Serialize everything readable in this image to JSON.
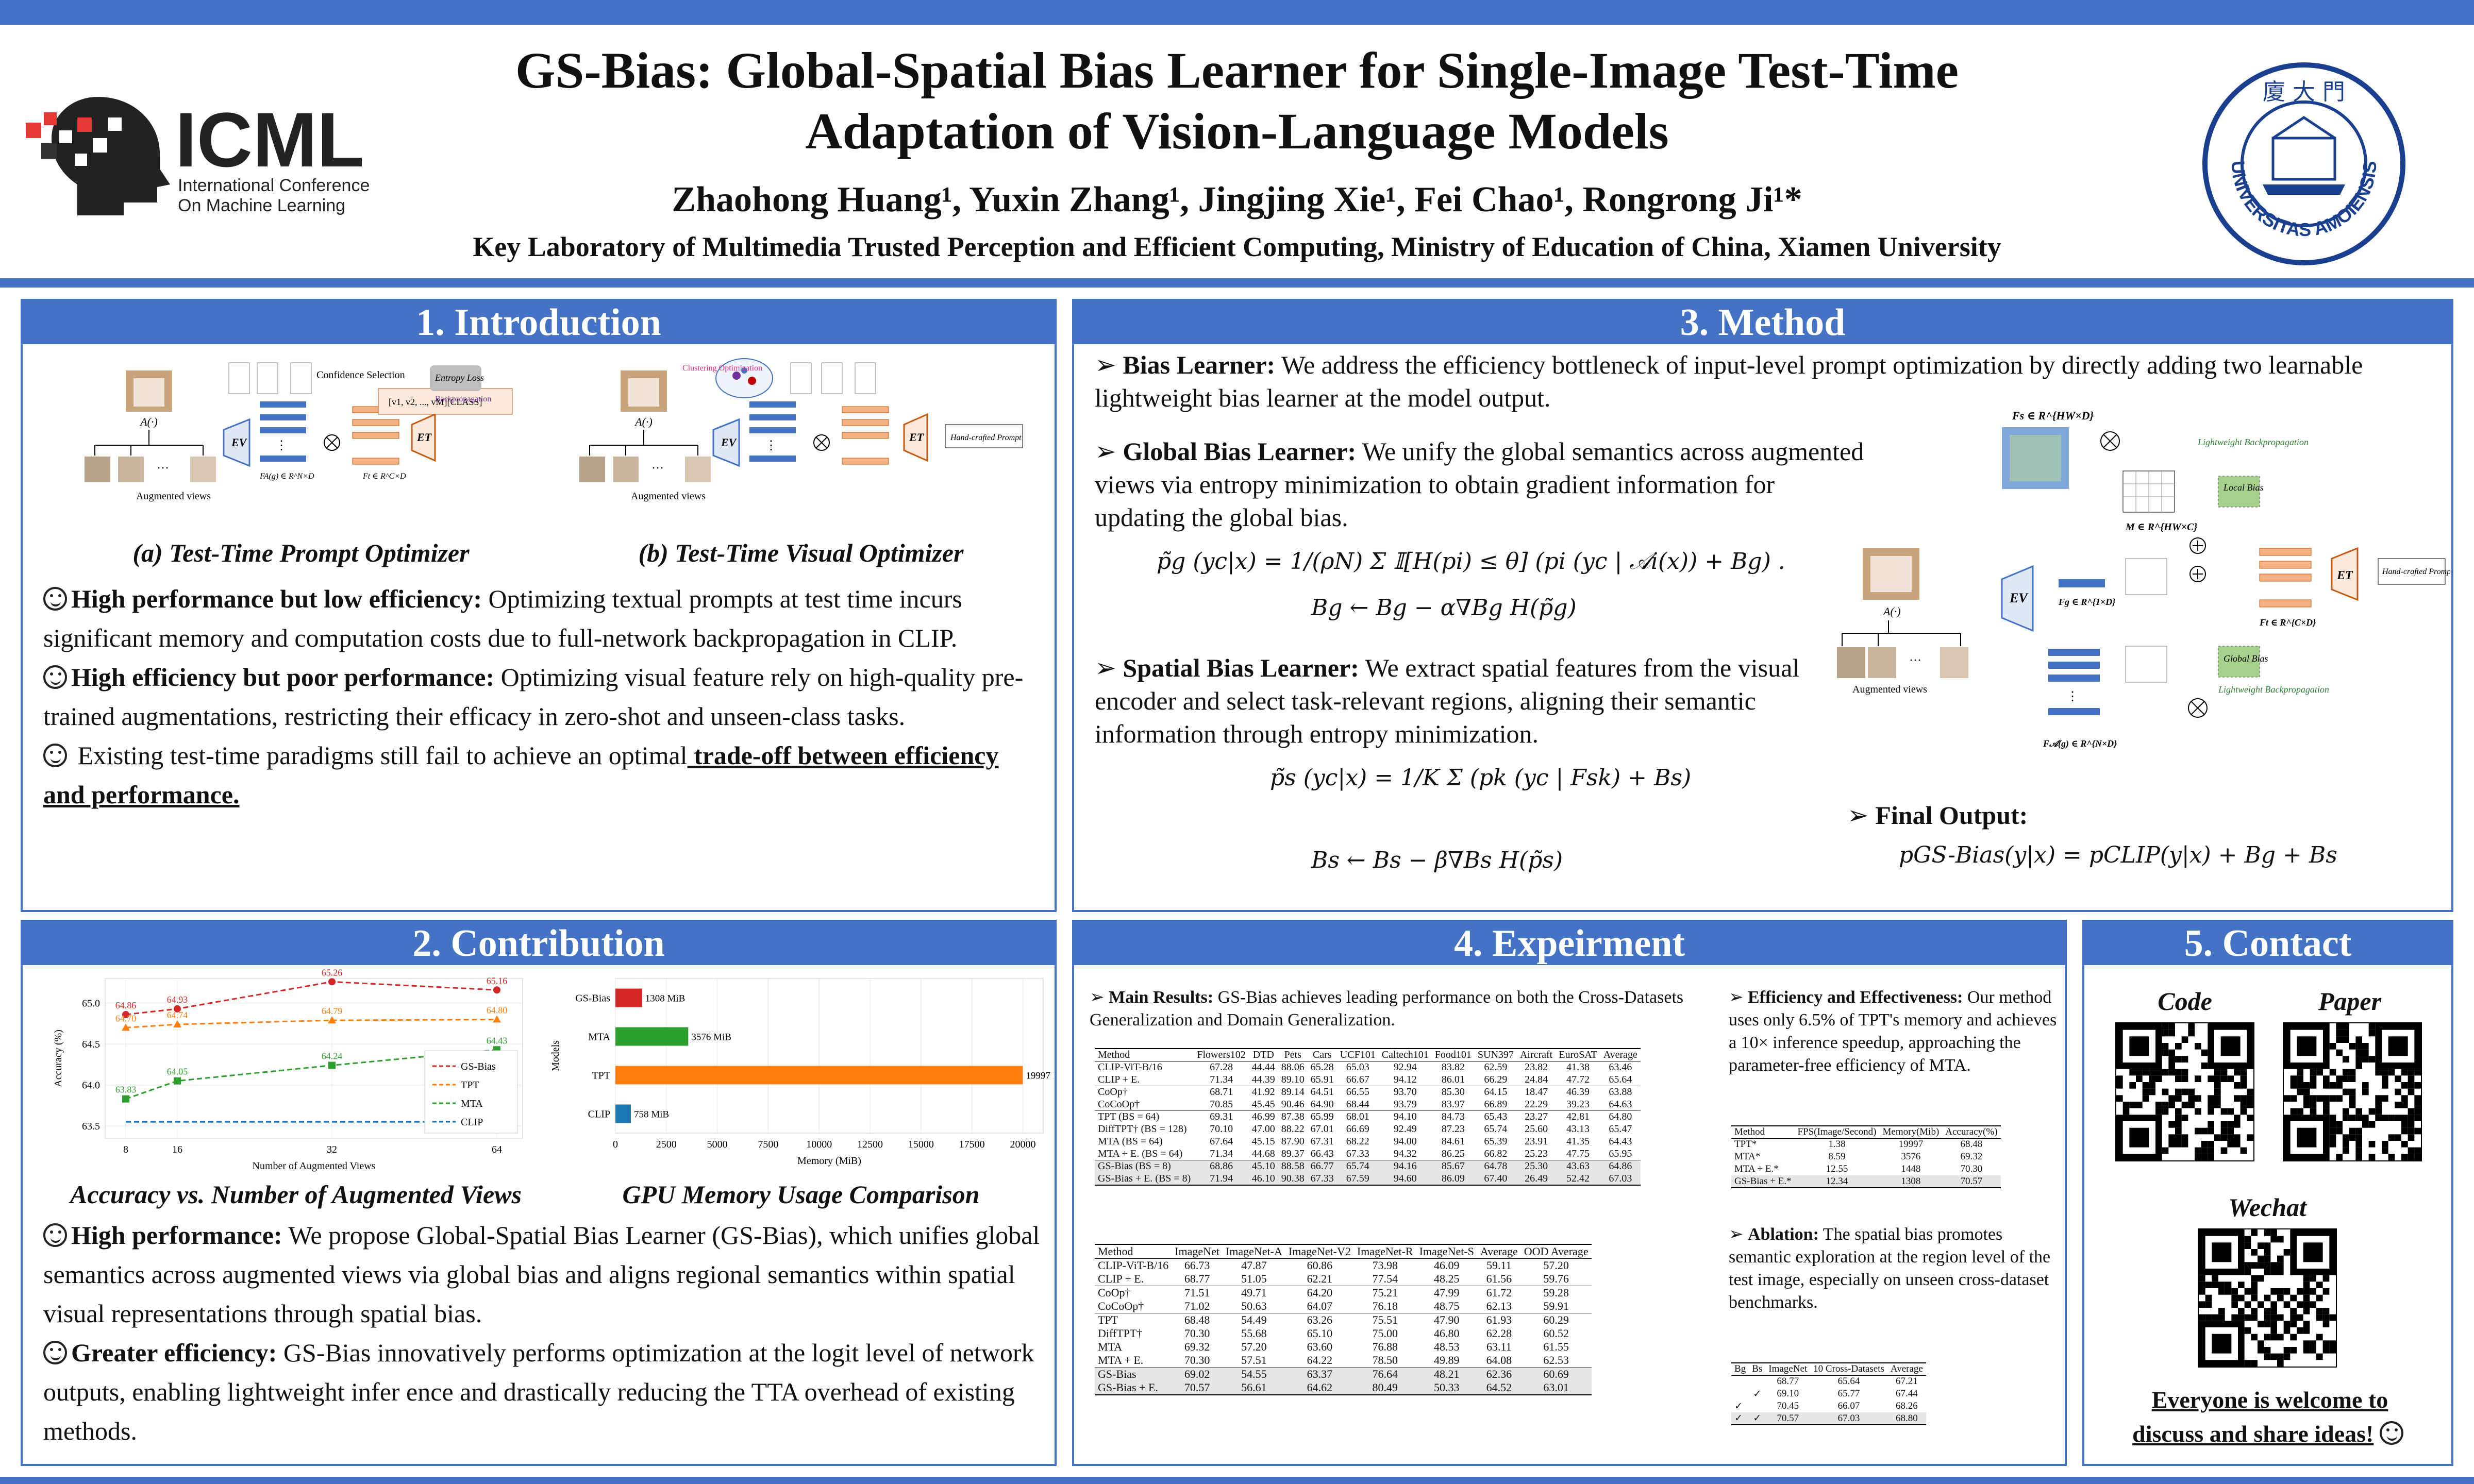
{
  "header": {
    "title_line1": "GS-Bias: Global-Spatial Bias Learner for Single-Image Test-Time",
    "title_line2": "Adaptation of Vision-Language Models",
    "authors": "Zhaohong Huang¹, Yuxin Zhang¹, Jingjing Xie¹, Fei Chao¹, Rongrong Ji¹*",
    "affiliation": "Key Laboratory of Multimedia Trusted Perception and Efficient Computing, Ministry of Education of China, Xiamen University",
    "logo_text": "ICML",
    "logo_sub1": "International Conference",
    "logo_sub2": "On Machine Learning",
    "seal_text": "UNIVERSITAS AMOIENSIS"
  },
  "colors": {
    "accent": "#4472c4",
    "red": "#d62728",
    "orange": "#ff7f0e",
    "green": "#2ca02c",
    "blue": "#1f77b4"
  },
  "intro": {
    "heading": "1. Introduction",
    "cap_a": "(a) Test-Time Prompt Optimizer",
    "cap_b": "(b) Test-Time Visual Optimizer",
    "p1_bold": "High performance but low efficiency:",
    "p1": " Optimizing textual prompts at test time incurs significant memory and computation costs due to full-network backpropagation in CLIP.",
    "p2_bold": "High efficiency but poor performance:",
    "p2": " Optimizing visual feature rely on high-quality pre-trained augmentations, restricting their efficacy in zero-shot and unseen-class tasks.",
    "p3": " Existing test-time paradigms still fail to achieve an optimal",
    "p3_u": " trade-off between efficiency and performance.",
    "fig_labels": {
      "aug": "Augmented views",
      "conf": "Confidence Selection",
      "ent": "Entropy Loss",
      "bp": "Backpropagation",
      "hand": "Hand-crafted Prompt",
      "clus": "Clustering Optimization"
    }
  },
  "contribution": {
    "heading": "2. Contribution",
    "cap1": "Accuracy vs. Number of Augmented Views",
    "cap2": "GPU Memory Usage Comparison",
    "p1_bold": "High performance:",
    "p1": " We propose Global-Spatial Bias Learner (GS-Bias), which unifies global semantics across augmented views via global bias and aligns regional semantics within spatial visual representations through spatial bias.",
    "p2_bold": "Greater efficiency:",
    "p2": " GS-Bias innovatively performs optimization at the logit level of network outputs, enabling lightweight infer    ence and drastically reducing the TTA overhead of existing methods."
  },
  "chart_data": [
    {
      "type": "line",
      "xlabel": "Number of Augmented Views",
      "ylabel": "Accuracy (%)",
      "x": [
        8,
        16,
        32,
        64
      ],
      "ylim": [
        63.35,
        65.3
      ],
      "yticks": [
        "63.5",
        "64.0",
        "64.5",
        "65.0"
      ],
      "legend": "right",
      "series": [
        {
          "name": "GS-Bias",
          "values": [
            64.86,
            64.93,
            65.26,
            65.16
          ]
        },
        {
          "name": "TPT",
          "values": [
            64.7,
            64.74,
            64.79,
            64.8
          ]
        },
        {
          "name": "MTA",
          "values": [
            63.83,
            64.05,
            64.24,
            64.43
          ]
        },
        {
          "name": "CLIP",
          "values": [
            63.55,
            63.55,
            63.55,
            63.55
          ]
        }
      ]
    },
    {
      "type": "bar",
      "orientation": "horizontal",
      "xlabel": "Memory (MiB)",
      "ylabel": "Models",
      "categories": [
        "GS-Bias",
        "MTA",
        "TPT",
        "CLIP"
      ],
      "values": [
        1308,
        3576,
        19997,
        758
      ],
      "labels": [
        "1308 MiB",
        "3576 MiB",
        "19997 MiB",
        "758 MiB"
      ],
      "xlim": [
        0,
        21000
      ],
      "xticks": [
        "0",
        "2500",
        "5000",
        "7500",
        "10000",
        "12500",
        "15000",
        "17500",
        "20000"
      ]
    }
  ],
  "method": {
    "heading": "3. Method",
    "b1_bold": "Bias Learner:",
    "b1": " We address the efficiency bottleneck of input-level prompt optimization by directly adding two learnable lightweight bias learner at the model output.",
    "b2_bold": "Global Bias Learner:",
    "b2": " We unify the global semantics across augmented views via entropy minimization to obtain gradient information for updating the global bias.",
    "b3_bold": "Spatial Bias Learner:",
    "b3": " We extract spatial features from the visual encoder and select task-relevant regions, aligning their semantic information through entropy minimization.",
    "b4_bold": "Final Output:",
    "f1": "p̃g (yc|x) = 1/(ρN) Σ 𝕀[H(pi) ≤ θ] (pi (yc | 𝒜i(x)) + Bg) .",
    "f2": "Bg ← Bg − α∇Bg H(p̃g)",
    "f3": "p̃s (yc|x) = 1/K Σ (pk (yc | Fsk) + Bs)",
    "f4": "Bs ← Bs − β∇Bs H(p̃s)",
    "f5": "pGS-Bias(y|x) = pCLIP(y|x) + Bg + Bs",
    "diag": {
      "fs": "Fs ∈ R^{HW×D}",
      "lwb": "Lightweight Backpropagation",
      "local": "Local Bias",
      "m": "M ∈ R^{HW×C}",
      "fg": "Fg ∈ R^{1×D}",
      "ft": "Ft ∈ R^{C×D}",
      "global": "Global Bias",
      "fa": "F𝒜(g) ∈ R^{N×D}",
      "hand": "Hand-crafted Prompt",
      "aug": "Augmented views",
      "a": "A(·)",
      "ev": "EV",
      "et": "ET"
    }
  },
  "experiment": {
    "heading": "4. Expeirment",
    "main_bold": "Main Results:",
    "main": " GS-Bias achieves leading performance on both the Cross-Datasets Generalization and Domain Generalization.",
    "eff_bold": "Efficiency and Effectiveness:",
    "eff": " Our method uses only 6.5% of TPT's memory and achieves a 10× inference speedup, approaching the parameter-free efficiency of MTA.",
    "abl_bold": "Ablation:",
    "abl": " The spatial bias promotes semantic exploration at the region level of the test image, especially on unseen cross-dataset benchmarks.",
    "table1": {
      "header": [
        "Method",
        "Flowers102",
        "DTD",
        "Pets",
        "Cars",
        "UCF101",
        "Caltech101",
        "Food101",
        "SUN397",
        "Aircraft",
        "EuroSAT",
        "Average"
      ],
      "rows": [
        [
          "CLIP-ViT-B/16",
          "67.28",
          "44.44",
          "88.06",
          "65.28",
          "65.03",
          "92.94",
          "83.82",
          "62.59",
          "23.82",
          "41.38",
          "63.46"
        ],
        [
          "CLIP + E.",
          "71.34",
          "44.39",
          "89.10",
          "65.91",
          "66.67",
          "94.12",
          "86.01",
          "66.29",
          "24.84",
          "47.72",
          "65.64"
        ],
        [
          "CoOp†",
          "68.71",
          "41.92",
          "89.14",
          "64.51",
          "66.55",
          "93.70",
          "85.30",
          "64.15",
          "18.47",
          "46.39",
          "63.88"
        ],
        [
          "CoCoOp†",
          "70.85",
          "45.45",
          "90.46",
          "64.90",
          "68.44",
          "93.79",
          "83.97",
          "66.89",
          "22.29",
          "39.23",
          "64.63"
        ],
        [
          "TPT (BS = 64)",
          "69.31",
          "46.99",
          "87.38",
          "65.99",
          "68.01",
          "94.10",
          "84.73",
          "65.43",
          "23.27",
          "42.81",
          "64.80"
        ],
        [
          "DiffTPT† (BS = 128)",
          "70.10",
          "47.00",
          "88.22",
          "67.01",
          "66.69",
          "92.49",
          "87.23",
          "65.74",
          "25.60",
          "43.13",
          "65.47"
        ],
        [
          "MTA (BS = 64)",
          "67.64",
          "45.15",
          "87.90",
          "67.31",
          "68.22",
          "94.00",
          "84.61",
          "65.39",
          "23.91",
          "41.35",
          "64.43"
        ],
        [
          "MTA + E. (BS = 64)",
          "71.34",
          "44.68",
          "89.37",
          "66.43",
          "67.33",
          "94.32",
          "86.25",
          "66.82",
          "25.23",
          "47.75",
          "65.95"
        ],
        [
          "GS-Bias (BS = 8)",
          "68.86",
          "45.10",
          "88.58",
          "66.77",
          "65.74",
          "94.16",
          "85.67",
          "64.78",
          "25.30",
          "43.63",
          "64.86"
        ],
        [
          "GS-Bias + E. (BS = 8)",
          "71.94",
          "46.10",
          "90.38",
          "67.33",
          "67.59",
          "94.60",
          "86.09",
          "67.40",
          "26.49",
          "52.42",
          "67.03"
        ]
      ]
    },
    "table2": {
      "header": [
        "Method",
        "ImageNet",
        "ImageNet-A",
        "ImageNet-V2",
        "ImageNet-R",
        "ImageNet-S",
        "Average",
        "OOD Average"
      ],
      "rows": [
        [
          "CLIP-ViT-B/16",
          "66.73",
          "47.87",
          "60.86",
          "73.98",
          "46.09",
          "59.11",
          "57.20"
        ],
        [
          "CLIP + E.",
          "68.77",
          "51.05",
          "62.21",
          "77.54",
          "48.25",
          "61.56",
          "59.76"
        ],
        [
          "CoOp†",
          "71.51",
          "49.71",
          "64.20",
          "75.21",
          "47.99",
          "61.72",
          "59.28"
        ],
        [
          "CoCoOp†",
          "71.02",
          "50.63",
          "64.07",
          "76.18",
          "48.75",
          "62.13",
          "59.91"
        ],
        [
          "TPT",
          "68.48",
          "54.49",
          "63.26",
          "75.51",
          "47.90",
          "61.93",
          "60.29"
        ],
        [
          "DiffTPT†",
          "70.30",
          "55.68",
          "65.10",
          "75.00",
          "46.80",
          "62.28",
          "60.52"
        ],
        [
          "MTA",
          "69.32",
          "57.20",
          "63.60",
          "76.88",
          "48.53",
          "63.11",
          "61.55"
        ],
        [
          "MTA + E.",
          "70.30",
          "57.51",
          "64.22",
          "78.50",
          "49.89",
          "64.08",
          "62.53"
        ],
        [
          "GS-Bias",
          "69.02",
          "54.55",
          "63.37",
          "76.64",
          "48.21",
          "62.36",
          "60.69"
        ],
        [
          "GS-Bias + E.",
          "70.57",
          "56.61",
          "64.62",
          "80.49",
          "50.33",
          "64.52",
          "63.01"
        ]
      ]
    },
    "table3": {
      "header": [
        "Method",
        "FPS(Image/Second)",
        "Memory(Mib)",
        "Accuracy(%)"
      ],
      "rows": [
        [
          "TPT*",
          "1.38",
          "19997",
          "68.48"
        ],
        [
          "MTA*",
          "8.59",
          "3576",
          "69.32"
        ],
        [
          "MTA + E.*",
          "12.55",
          "1448",
          "70.30"
        ],
        [
          "GS-Bias + E.*",
          "12.34",
          "1308",
          "70.57"
        ]
      ]
    },
    "table4": {
      "header": [
        "Bg",
        "Bs",
        "ImageNet",
        "10 Cross-Datasets",
        "Average"
      ],
      "rows": [
        [
          "",
          "",
          "68.77",
          "65.64",
          "67.21"
        ],
        [
          "",
          "✓",
          "69.10",
          "65.77",
          "67.44"
        ],
        [
          "✓",
          "",
          "70.45",
          "66.07",
          "68.26"
        ],
        [
          "✓",
          "✓",
          "70.57",
          "67.03",
          "68.80"
        ]
      ]
    }
  },
  "contact": {
    "heading": "5. Contact",
    "code": "Code",
    "paper": "Paper",
    "wechat": "Wechat",
    "line1": "Everyone is welcome to",
    "line2": "discuss and share ideas!"
  }
}
